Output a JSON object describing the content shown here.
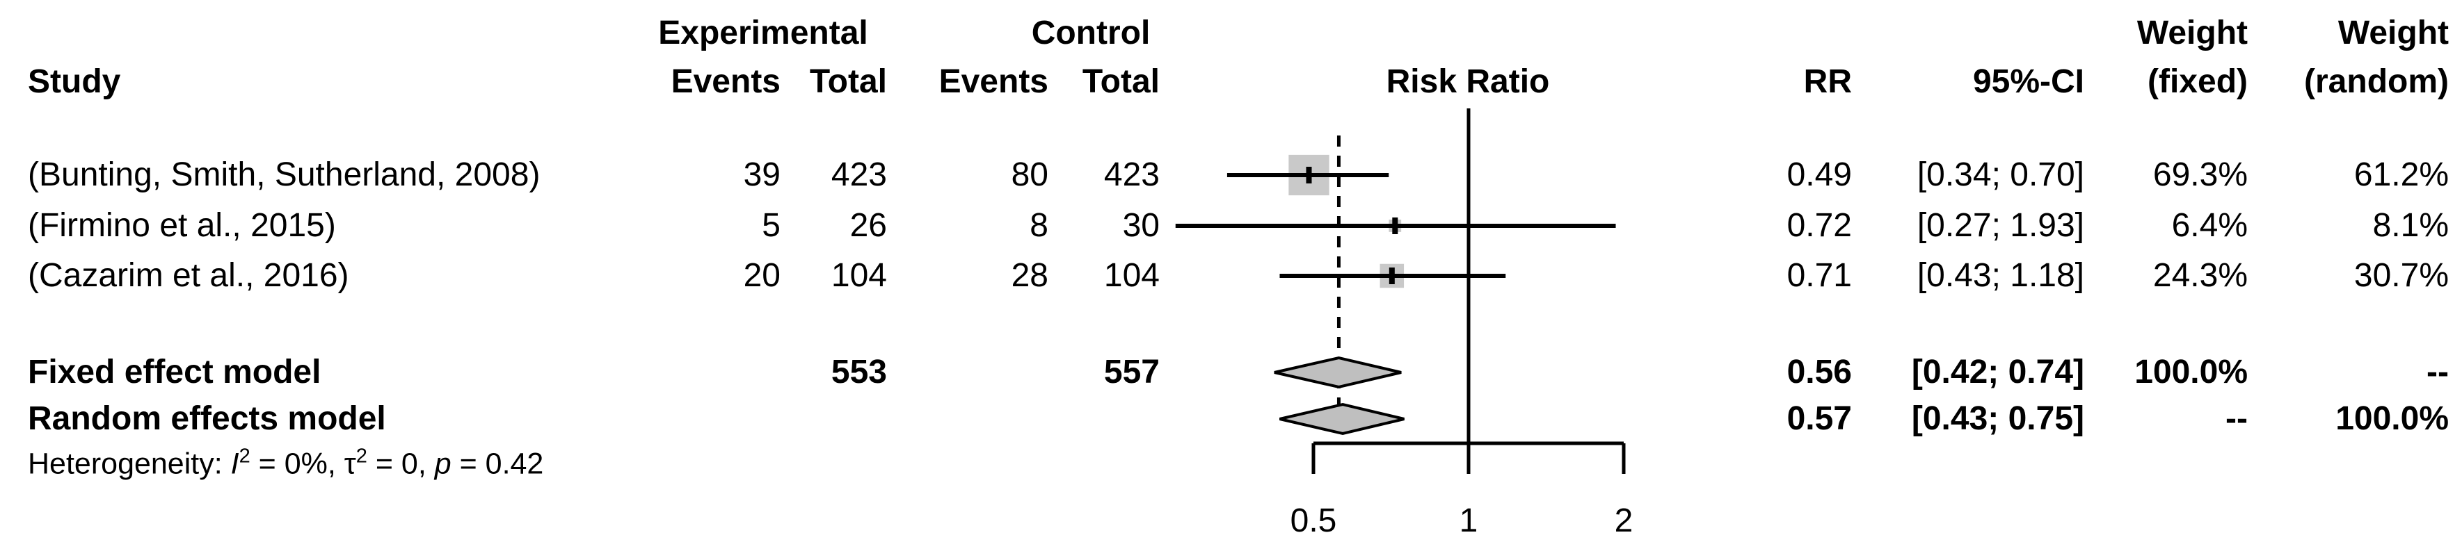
{
  "headers": {
    "study": "Study",
    "group_experimental": "Experimental",
    "group_control": "Control",
    "exp_events": "Events",
    "exp_total": "Total",
    "ctrl_events": "Events",
    "ctrl_total": "Total",
    "risk_ratio": "Risk Ratio",
    "rr": "RR",
    "ci": "95%-CI",
    "weight_fixed_top": "Weight",
    "weight_fixed_bottom": "(fixed)",
    "weight_random_top": "Weight",
    "weight_random_bottom": "(random)"
  },
  "studies": [
    {
      "study": "(Bunting, Smith, Sutherland, 2008)",
      "exp_events": "39",
      "exp_total": "423",
      "ctrl_events": "80",
      "ctrl_total": "423",
      "rr": "0.49",
      "ci": "[0.34; 0.70]",
      "w_fixed": "69.3%",
      "w_random": "61.2%"
    },
    {
      "study": "(Firmino et al., 2015)",
      "exp_events": "5",
      "exp_total": "26",
      "ctrl_events": "8",
      "ctrl_total": "30",
      "rr": "0.72",
      "ci": "[0.27; 1.93]",
      "w_fixed": "6.4%",
      "w_random": "8.1%"
    },
    {
      "study": "(Cazarim et al., 2016)",
      "exp_events": "20",
      "exp_total": "104",
      "ctrl_events": "28",
      "ctrl_total": "104",
      "rr": "0.71",
      "ci": "[0.43; 1.18]",
      "w_fixed": "24.3%",
      "w_random": "30.7%"
    }
  ],
  "fixed": {
    "label": "Fixed effect model",
    "exp_total": "553",
    "ctrl_total": "557",
    "rr": "0.56",
    "ci": "[0.42; 0.74]",
    "w_fixed": "100.0%",
    "w_random": "--"
  },
  "random": {
    "label": "Random effects model",
    "rr": "0.57",
    "ci": "[0.43; 0.75]",
    "w_fixed": "--",
    "w_random": "100.0%"
  },
  "heterogeneity": {
    "label": "Heterogeneity: ",
    "i": "I",
    "i_sup": "2",
    "i_rest": " = 0%, ",
    "tau": "τ",
    "tau_sup": "2",
    "tau_rest": " = 0, ",
    "p": "p",
    "p_rest": " = 0.42"
  },
  "axis": {
    "ticks": [
      "0.5",
      "1",
      "2"
    ]
  },
  "colors": {
    "marker_gray": "#c9c9c9",
    "diamond_gray": "#bfbfbf",
    "line_black": "#000000"
  },
  "chart_data": {
    "type": "forest_plot",
    "effect_measure": "Risk Ratio",
    "x_scale": "log",
    "x_ticks": [
      0.5,
      1,
      2
    ],
    "x_range": [
      0.5,
      2
    ],
    "reference_line": 1.0,
    "dashed_line_at": 0.56,
    "studies": [
      {
        "name": "(Bunting, Smith, Sutherland, 2008)",
        "exp_events": 39,
        "exp_total": 423,
        "ctrl_events": 80,
        "ctrl_total": 423,
        "rr": 0.49,
        "ci_low": 0.34,
        "ci_high": 0.7,
        "weight_fixed": 69.3,
        "weight_random": 61.2
      },
      {
        "name": "(Firmino et al., 2015)",
        "exp_events": 5,
        "exp_total": 26,
        "ctrl_events": 8,
        "ctrl_total": 30,
        "rr": 0.72,
        "ci_low": 0.27,
        "ci_high": 1.93,
        "weight_fixed": 6.4,
        "weight_random": 8.1
      },
      {
        "name": "(Cazarim et al., 2016)",
        "exp_events": 20,
        "exp_total": 104,
        "ctrl_events": 28,
        "ctrl_total": 104,
        "rr": 0.71,
        "ci_low": 0.43,
        "ci_high": 1.18,
        "weight_fixed": 24.3,
        "weight_random": 30.7
      }
    ],
    "fixed_effect": {
      "exp_total": 553,
      "ctrl_total": 557,
      "rr": 0.56,
      "ci_low": 0.42,
      "ci_high": 0.74,
      "weight_fixed": 100.0
    },
    "random_effects": {
      "rr": 0.57,
      "ci_low": 0.43,
      "ci_high": 0.75,
      "weight_random": 100.0
    },
    "heterogeneity_stats": {
      "I2": "0%",
      "tau2": "0",
      "p": "0.42"
    }
  }
}
